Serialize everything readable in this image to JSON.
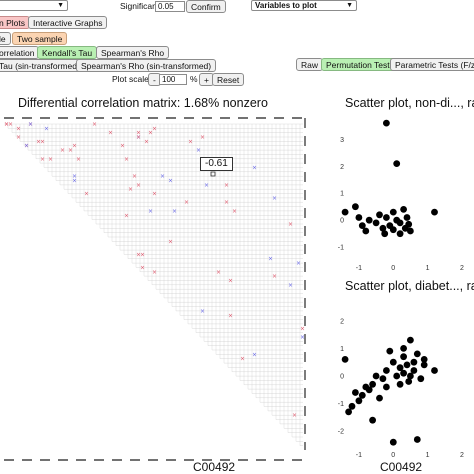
{
  "controls": {
    "significance_label": "Significance level:",
    "significance_value": "0.05",
    "confirm_label": "Confirm",
    "variables_select": "Variables to plot",
    "plot_tab_label": "n Plots",
    "interactive_tab_label": "Interactive Graphs",
    "one_sample_label": "le",
    "two_sample_label": "Two sample",
    "correlation_label": "orrelation",
    "kendall_label": "Kendall's Tau",
    "spearman_label": "Spearman's Rho",
    "tau_sin_label": "Tau (sin-transformed)",
    "spearman_sin_label": "Spearman's Rho (sin-transformed)",
    "raw_label": "Raw",
    "permutation_label": "Permutation Tests",
    "parametric_label": "Parametric Tests (F/z)",
    "plot_scale_label": "Plot scale:",
    "minus_label": "-",
    "scale_value": "100",
    "percent_label": "%",
    "plus_label": "+",
    "reset_label": "Reset"
  },
  "matrix": {
    "title": "Differential correlation matrix: 1.68% nonzero",
    "tooltip_value": "-0.61",
    "xlabel": "C00492",
    "colors": {
      "positive": "#e05a6e",
      "negative": "#6a6ae8",
      "grid": "#cfcfcf"
    }
  },
  "scatter_top": {
    "title": "Scatter plot, non-di..., raw",
    "xlabel": "",
    "x_ticks": [
      "-1",
      "0",
      "1",
      "2"
    ],
    "y_ticks": [
      "3",
      "2",
      "1",
      "0",
      "-1"
    ],
    "points": [
      [
        -0.2,
        3.6
      ],
      [
        0.1,
        2.1
      ],
      [
        -1.4,
        0.3
      ],
      [
        -1.1,
        0.5
      ],
      [
        -1.0,
        0.1
      ],
      [
        -0.9,
        -0.2
      ],
      [
        -0.8,
        -0.4
      ],
      [
        -0.7,
        0.0
      ],
      [
        -0.5,
        -0.1
      ],
      [
        -0.4,
        0.2
      ],
      [
        -0.3,
        -0.3
      ],
      [
        -0.2,
        0.1
      ],
      [
        -0.1,
        -0.2
      ],
      [
        0.0,
        0.3
      ],
      [
        0.1,
        0.0
      ],
      [
        0.2,
        -0.1
      ],
      [
        0.3,
        0.4
      ],
      [
        0.35,
        -0.3
      ],
      [
        0.4,
        0.1
      ],
      [
        0.5,
        -0.4
      ],
      [
        0.2,
        -0.5
      ],
      [
        0.0,
        -0.35
      ],
      [
        -0.25,
        -0.5
      ],
      [
        0.45,
        -0.15
      ],
      [
        1.2,
        0.3
      ]
    ]
  },
  "scatter_bottom": {
    "title": "Scatter plot, diabet..., raw",
    "xlabel": "C00492",
    "x_ticks": [
      "-1",
      "0",
      "1",
      "2"
    ],
    "y_ticks": [
      "2",
      "1",
      "0",
      "-1",
      "-2"
    ],
    "points": [
      [
        -0.1,
        0.9
      ],
      [
        0.5,
        1.3
      ],
      [
        0.9,
        0.4
      ],
      [
        1.2,
        0.2
      ],
      [
        0.7,
        0.8
      ],
      [
        0.6,
        0.5
      ],
      [
        0.4,
        0.4
      ],
      [
        0.3,
        0.7
      ],
      [
        0.2,
        0.3
      ],
      [
        0.1,
        0.0
      ],
      [
        0.0,
        0.5
      ],
      [
        -0.2,
        0.2
      ],
      [
        -0.3,
        -0.1
      ],
      [
        -0.5,
        0.0
      ],
      [
        -0.6,
        -0.3
      ],
      [
        -0.7,
        -0.5
      ],
      [
        -0.8,
        -0.4
      ],
      [
        -0.9,
        -0.7
      ],
      [
        -1.0,
        -0.9
      ],
      [
        -1.2,
        -1.1
      ],
      [
        -1.3,
        -1.3
      ],
      [
        -1.1,
        -0.6
      ],
      [
        -0.4,
        -0.8
      ],
      [
        0.2,
        -0.3
      ],
      [
        0.5,
        0.0
      ],
      [
        0.8,
        -0.1
      ],
      [
        0.6,
        0.2
      ],
      [
        0.3,
        0.1
      ],
      [
        -0.2,
        -0.4
      ],
      [
        -0.6,
        -1.6
      ],
      [
        0.0,
        -2.4
      ],
      [
        0.7,
        -2.3
      ],
      [
        0.9,
        0.6
      ],
      [
        0.45,
        -0.2
      ],
      [
        -1.4,
        0.6
      ],
      [
        0.3,
        1.0
      ]
    ]
  }
}
